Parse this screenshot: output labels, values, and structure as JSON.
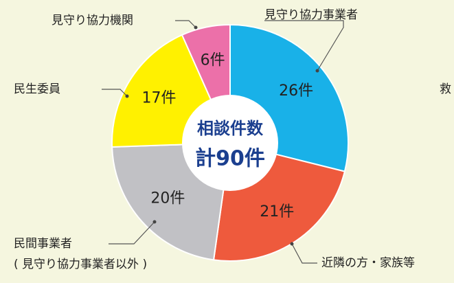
{
  "chart_data": {
    "type": "donut",
    "categories": [
      "見守り協力事業者",
      "近隣の方・家族等",
      "民間事業者",
      "民生委員",
      "見守り協力機関"
    ],
    "values": [
      26,
      21,
      20,
      17,
      6
    ],
    "value_labels": [
      "26件",
      "21件",
      "20件",
      "17件",
      "6件"
    ],
    "colors": [
      "#19b1e8",
      "#ee5a3d",
      "#c1c1c5",
      "#fff100",
      "#ec70a9"
    ],
    "center_label": [
      "相談件数",
      "計90件"
    ],
    "annotations": [
      "( 見守り協力事業者以外 )",
      "救"
    ]
  }
}
